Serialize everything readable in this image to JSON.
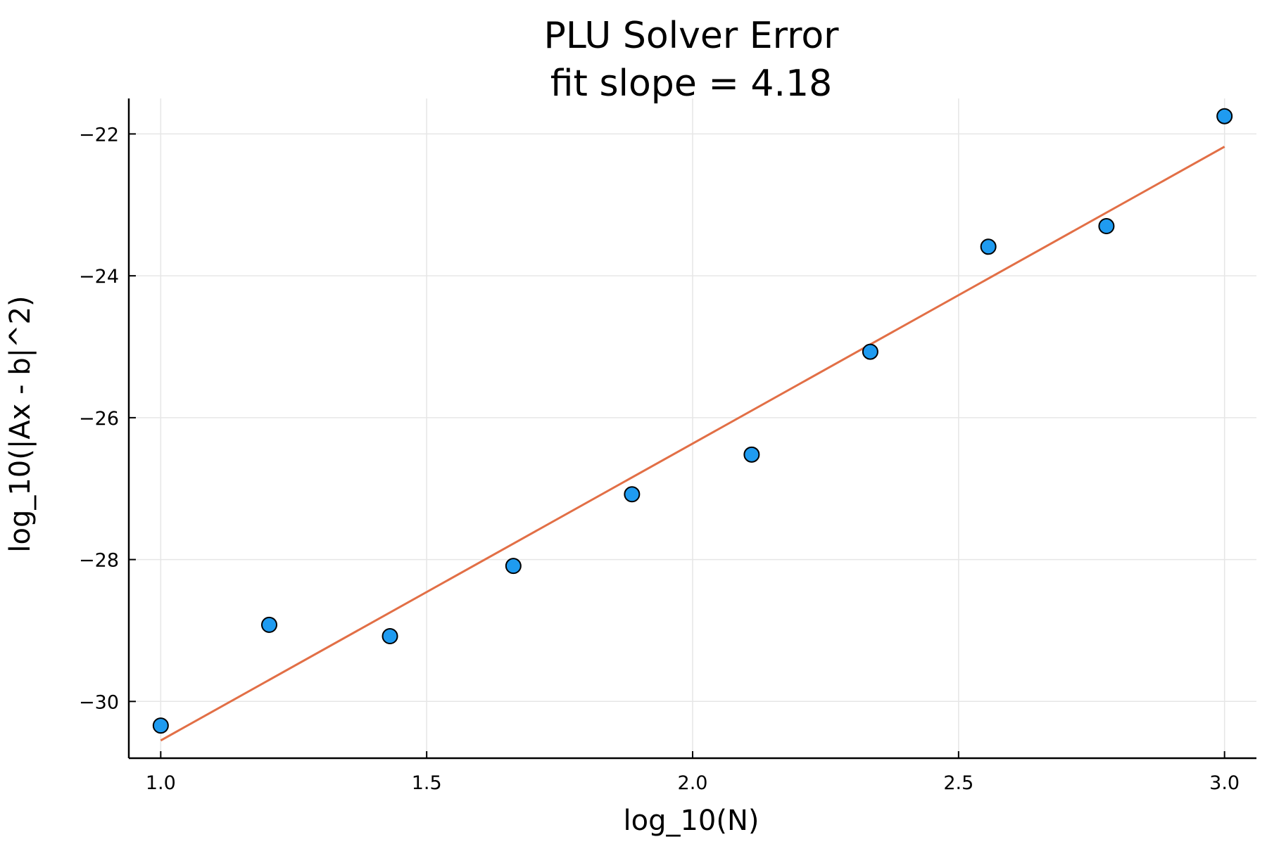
{
  "chart_data": {
    "type": "scatter",
    "title": "PLU Solver Error",
    "subtitle": "fit slope = 4.18",
    "xlabel": "log_10(N)",
    "ylabel": "log_10(|Ax - b|^2)",
    "xlim": [
      0.94,
      3.06
    ],
    "ylim": [
      -30.8,
      -21.5
    ],
    "xticks": [
      1.0,
      1.5,
      2.0,
      2.5,
      3.0
    ],
    "xtick_labels": [
      "1.0",
      "1.5",
      "2.0",
      "2.5",
      "3.0"
    ],
    "yticks": [
      -30,
      -28,
      -26,
      -24,
      -22
    ],
    "ytick_labels": [
      "−30",
      "−28",
      "−26",
      "−24",
      "−22"
    ],
    "grid": true,
    "legend": "none",
    "series": [
      {
        "kind": "scatter",
        "color": "#1f9bf0",
        "x": [
          1.0,
          1.204,
          1.431,
          1.663,
          1.886,
          2.111,
          2.334,
          2.556,
          2.778,
          3.0
        ],
        "y": [
          -30.34,
          -28.92,
          -29.08,
          -28.09,
          -27.08,
          -26.52,
          -25.07,
          -23.59,
          -23.3,
          -21.75
        ]
      },
      {
        "kind": "line",
        "color": "#e26f46",
        "x": [
          1.0,
          3.0
        ],
        "y": [
          -30.55,
          -22.18
        ]
      }
    ]
  }
}
